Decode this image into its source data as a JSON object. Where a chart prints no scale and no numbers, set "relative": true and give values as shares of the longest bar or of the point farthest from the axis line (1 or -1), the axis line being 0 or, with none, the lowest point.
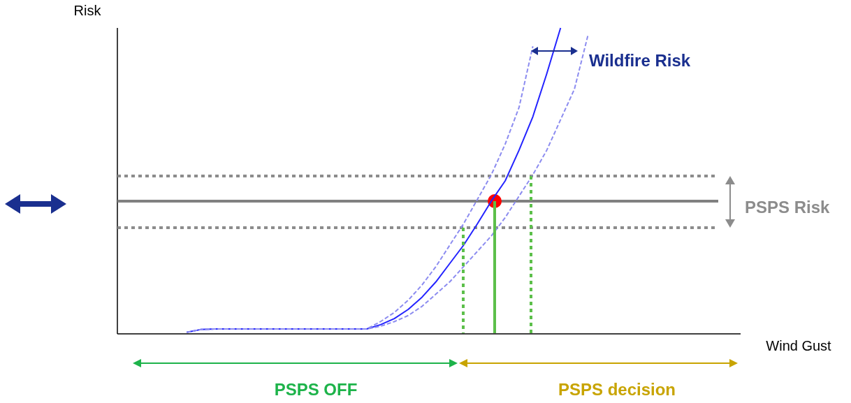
{
  "chart_data": {
    "type": "line",
    "relative": true,
    "xlabel": "Wind Gust",
    "ylabel": "Risk",
    "categories": [
      null,
      null,
      null,
      null,
      null,
      null,
      null,
      null,
      null,
      null,
      null,
      null,
      null,
      null,
      null,
      null,
      null,
      null,
      null,
      null,
      null,
      null,
      null,
      null,
      null,
      null,
      null,
      null,
      null,
      null,
      null,
      null,
      null,
      null,
      null,
      null,
      null,
      null,
      null,
      null,
      null,
      null,
      null,
      null,
      null,
      null
    ],
    "series": [
      {
        "color": "#2323ff",
        "line_style": "solid",
        "values": [
          null,
          null,
          null,
          null,
          null,
          0.005,
          0.014,
          0.016,
          0.016,
          0.016,
          0.016,
          0.016,
          0.016,
          0.016,
          0.016,
          0.016,
          0.016,
          0.016,
          0.016,
          0.03,
          0.05,
          0.08,
          0.12,
          0.17,
          0.23,
          0.29,
          0.36,
          0.434,
          0.5,
          0.6,
          0.71,
          0.85,
          1.0,
          null,
          null,
          null,
          null,
          null,
          null,
          null,
          null,
          null,
          null,
          null,
          null,
          null
        ]
      },
      {
        "color": "#8c8cf0",
        "line_style": "dashed",
        "values": [
          null,
          null,
          null,
          null,
          null,
          0.005,
          0.014,
          0.016,
          0.016,
          0.016,
          0.016,
          0.016,
          0.016,
          0.016,
          0.016,
          0.016,
          0.016,
          0.016,
          0.016,
          0.04,
          0.07,
          0.11,
          0.16,
          0.22,
          0.29,
          0.36,
          0.44,
          0.52,
          0.62,
          0.74,
          0.94,
          null,
          null,
          null,
          null,
          null,
          null,
          null,
          null,
          null,
          null,
          null,
          null,
          null,
          null,
          null
        ]
      },
      {
        "color": "#8c8cf0",
        "line_style": "dashed",
        "values": [
          null,
          null,
          null,
          null,
          null,
          0.005,
          0.014,
          0.016,
          0.016,
          0.016,
          0.016,
          0.016,
          0.016,
          0.016,
          0.016,
          0.016,
          0.016,
          0.016,
          0.016,
          0.025,
          0.04,
          0.06,
          0.09,
          0.13,
          0.17,
          0.22,
          0.27,
          0.32,
          0.38,
          0.45,
          0.52,
          0.6,
          0.7,
          0.8,
          0.98,
          null,
          null,
          null,
          null,
          null,
          null,
          null,
          null,
          null,
          null,
          null
        ]
      }
    ],
    "ref_lines": [
      {
        "axis": "y",
        "value": 0.434,
        "color": "#808080",
        "line_style": "solid"
      },
      {
        "axis": "y",
        "value": 0.516,
        "color": "#8c8c8c",
        "line_style": "dotted"
      },
      {
        "axis": "y",
        "value": 0.347,
        "color": "#8c8c8c",
        "line_style": "dotted"
      }
    ],
    "annotations": [
      "Wildfire Risk",
      "PSPS Risk",
      "PSPS OFF",
      "PSPS decision"
    ]
  }
}
